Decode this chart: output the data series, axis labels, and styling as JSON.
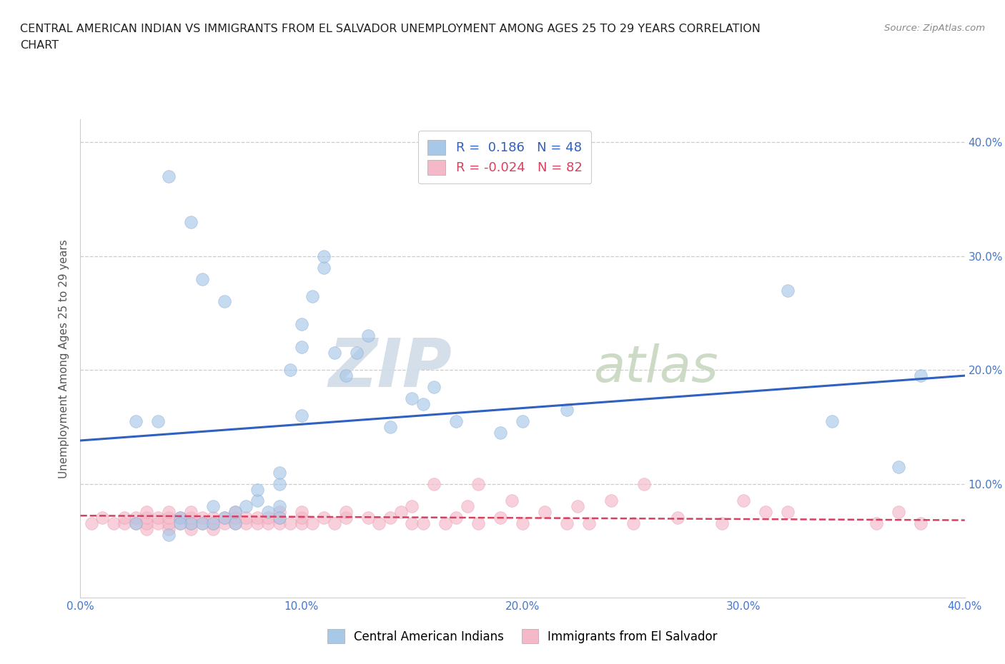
{
  "title_line1": "CENTRAL AMERICAN INDIAN VS IMMIGRANTS FROM EL SALVADOR UNEMPLOYMENT AMONG AGES 25 TO 29 YEARS CORRELATION",
  "title_line2": "CHART",
  "source_text": "Source: ZipAtlas.com",
  "ylabel": "Unemployment Among Ages 25 to 29 years",
  "xlim": [
    0.0,
    0.4
  ],
  "ylim": [
    0.0,
    0.42
  ],
  "xtick_positions": [
    0.0,
    0.1,
    0.2,
    0.3,
    0.4
  ],
  "xtick_labels": [
    "0.0%",
    "10.0%",
    "20.0%",
    "30.0%",
    "40.0%"
  ],
  "ytick_positions": [
    0.1,
    0.2,
    0.3,
    0.4
  ],
  "ytick_labels": [
    "10.0%",
    "20.0%",
    "30.0%",
    "40.0%"
  ],
  "blue_color": "#a8c8e8",
  "pink_color": "#f4b8c8",
  "blue_line_color": "#3060c0",
  "pink_line_color": "#d84060",
  "R_blue": 0.186,
  "N_blue": 48,
  "R_pink": -0.024,
  "N_pink": 82,
  "watermark_zip": "ZIP",
  "watermark_atlas": "atlas",
  "legend_label_blue": "Central American Indians",
  "legend_label_pink": "Immigrants from El Salvador",
  "blue_x": [
    0.025,
    0.04,
    0.045,
    0.05,
    0.055,
    0.06,
    0.06,
    0.065,
    0.07,
    0.07,
    0.075,
    0.08,
    0.08,
    0.085,
    0.09,
    0.09,
    0.09,
    0.095,
    0.1,
    0.1,
    0.105,
    0.11,
    0.11,
    0.115,
    0.12,
    0.125,
    0.13,
    0.14,
    0.15,
    0.155,
    0.16,
    0.17,
    0.19,
    0.2,
    0.22,
    0.025,
    0.035,
    0.04,
    0.05,
    0.055,
    0.065,
    0.1,
    0.32,
    0.34,
    0.37,
    0.38,
    0.045,
    0.09
  ],
  "blue_y": [
    0.065,
    0.055,
    0.07,
    0.065,
    0.065,
    0.065,
    0.08,
    0.07,
    0.065,
    0.075,
    0.08,
    0.085,
    0.095,
    0.075,
    0.08,
    0.1,
    0.11,
    0.2,
    0.22,
    0.24,
    0.265,
    0.29,
    0.3,
    0.215,
    0.195,
    0.215,
    0.23,
    0.15,
    0.175,
    0.17,
    0.185,
    0.155,
    0.145,
    0.155,
    0.165,
    0.155,
    0.155,
    0.37,
    0.33,
    0.28,
    0.26,
    0.16,
    0.27,
    0.155,
    0.115,
    0.195,
    0.065,
    0.07
  ],
  "pink_x": [
    0.005,
    0.01,
    0.015,
    0.02,
    0.02,
    0.025,
    0.025,
    0.03,
    0.03,
    0.03,
    0.03,
    0.035,
    0.035,
    0.04,
    0.04,
    0.04,
    0.04,
    0.045,
    0.045,
    0.05,
    0.05,
    0.05,
    0.05,
    0.055,
    0.055,
    0.06,
    0.06,
    0.06,
    0.065,
    0.065,
    0.07,
    0.07,
    0.07,
    0.075,
    0.075,
    0.08,
    0.08,
    0.085,
    0.085,
    0.09,
    0.09,
    0.09,
    0.095,
    0.1,
    0.1,
    0.1,
    0.105,
    0.11,
    0.115,
    0.12,
    0.12,
    0.13,
    0.135,
    0.14,
    0.145,
    0.15,
    0.15,
    0.155,
    0.16,
    0.165,
    0.17,
    0.175,
    0.18,
    0.18,
    0.19,
    0.195,
    0.2,
    0.21,
    0.22,
    0.225,
    0.23,
    0.24,
    0.25,
    0.255,
    0.27,
    0.29,
    0.3,
    0.31,
    0.32,
    0.36,
    0.37,
    0.38
  ],
  "pink_y": [
    0.065,
    0.07,
    0.065,
    0.065,
    0.07,
    0.065,
    0.07,
    0.06,
    0.065,
    0.07,
    0.075,
    0.065,
    0.07,
    0.06,
    0.065,
    0.07,
    0.075,
    0.065,
    0.07,
    0.06,
    0.065,
    0.07,
    0.075,
    0.065,
    0.07,
    0.06,
    0.065,
    0.07,
    0.065,
    0.07,
    0.065,
    0.07,
    0.075,
    0.065,
    0.07,
    0.065,
    0.07,
    0.065,
    0.07,
    0.065,
    0.07,
    0.075,
    0.065,
    0.065,
    0.07,
    0.075,
    0.065,
    0.07,
    0.065,
    0.07,
    0.075,
    0.07,
    0.065,
    0.07,
    0.075,
    0.065,
    0.08,
    0.065,
    0.1,
    0.065,
    0.07,
    0.08,
    0.065,
    0.1,
    0.07,
    0.085,
    0.065,
    0.075,
    0.065,
    0.08,
    0.065,
    0.085,
    0.065,
    0.1,
    0.07,
    0.065,
    0.085,
    0.075,
    0.075,
    0.065,
    0.075,
    0.065
  ],
  "blue_trend_y0": 0.138,
  "blue_trend_y1": 0.195,
  "pink_trend_y0": 0.072,
  "pink_trend_y1": 0.068
}
